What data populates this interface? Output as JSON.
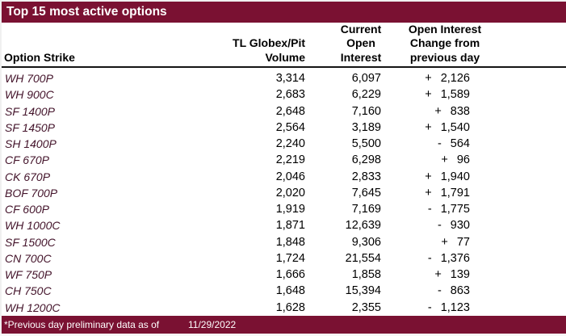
{
  "title": "Top 15 most active options",
  "colors": {
    "accent_maroon": "#7a1132",
    "strike_text": "#43132a",
    "header_rule": "#151515",
    "title_text": "#ffffff"
  },
  "table": {
    "headers": {
      "col1": "Option Strike",
      "col2_line1": "TL Globex/Pit",
      "col2_line2": "Volume",
      "col3_line1": "Current",
      "col3_line2": "Open",
      "col3_line3": "Interest",
      "col4_line1": "Open Interest",
      "col4_line2": "Change from",
      "col4_line3": "previous day"
    },
    "rows": [
      {
        "strike": "WH 700P",
        "volume": "3,314",
        "open_interest": "6,097",
        "change_sign": "+",
        "change_value": "2,126"
      },
      {
        "strike": "WH 900C",
        "volume": "2,683",
        "open_interest": "6,229",
        "change_sign": "+",
        "change_value": "1,589"
      },
      {
        "strike": "SF 1400P",
        "volume": "2,648",
        "open_interest": "7,160",
        "change_sign": "+",
        "change_value": "838"
      },
      {
        "strike": "SF 1450P",
        "volume": "2,564",
        "open_interest": "3,189",
        "change_sign": "+",
        "change_value": "1,540"
      },
      {
        "strike": "SH 1400P",
        "volume": "2,240",
        "open_interest": "5,500",
        "change_sign": "-",
        "change_value": "564"
      },
      {
        "strike": "CF 670P",
        "volume": "2,219",
        "open_interest": "6,298",
        "change_sign": "+",
        "change_value": "96"
      },
      {
        "strike": "CK 670P",
        "volume": "2,046",
        "open_interest": "2,833",
        "change_sign": "+",
        "change_value": "1,940"
      },
      {
        "strike": "BOF 700P",
        "volume": "2,020",
        "open_interest": "7,645",
        "change_sign": "+",
        "change_value": "1,791"
      },
      {
        "strike": "CF 600P",
        "volume": "1,919",
        "open_interest": "7,169",
        "change_sign": "-",
        "change_value": "1,775"
      },
      {
        "strike": "WH 1000C",
        "volume": "1,871",
        "open_interest": "12,639",
        "change_sign": "-",
        "change_value": "930"
      },
      {
        "strike": "SF 1500C",
        "volume": "1,848",
        "open_interest": "9,306",
        "change_sign": "+",
        "change_value": "77"
      },
      {
        "strike": "CN 700C",
        "volume": "1,724",
        "open_interest": "21,554",
        "change_sign": "-",
        "change_value": "1,376"
      },
      {
        "strike": "WF 750P",
        "volume": "1,666",
        "open_interest": "1,858",
        "change_sign": "+",
        "change_value": "139"
      },
      {
        "strike": "CH 750C",
        "volume": "1,648",
        "open_interest": "15,394",
        "change_sign": "-",
        "change_value": "863"
      },
      {
        "strike": "WH 1200C",
        "volume": "1,628",
        "open_interest": "2,355",
        "change_sign": "-",
        "change_value": "1,123"
      }
    ]
  },
  "footer": {
    "note": "*Previous day preliminary data as of",
    "date": "11/29/2022"
  },
  "chart_data": {
    "type": "table",
    "title": "Top 15 most active options",
    "columns": [
      "Option Strike",
      "TL Globex/Pit Volume",
      "Current Open Interest",
      "Open Interest Change from previous day"
    ],
    "rows": [
      [
        "WH 700P",
        3314,
        6097,
        2126
      ],
      [
        "WH 900C",
        2683,
        6229,
        1589
      ],
      [
        "SF 1400P",
        2648,
        7160,
        838
      ],
      [
        "SF 1450P",
        2564,
        3189,
        1540
      ],
      [
        "SH 1400P",
        2240,
        5500,
        -564
      ],
      [
        "CF 670P",
        2219,
        6298,
        96
      ],
      [
        "CK 670P",
        2046,
        2833,
        1940
      ],
      [
        "BOF 700P",
        2020,
        7645,
        1791
      ],
      [
        "CF 600P",
        1919,
        7169,
        -1775
      ],
      [
        "WH 1000C",
        1871,
        12639,
        -930
      ],
      [
        "SF 1500C",
        1848,
        9306,
        77
      ],
      [
        "CN 700C",
        1724,
        21554,
        -1376
      ],
      [
        "WF 750P",
        1666,
        1858,
        139
      ],
      [
        "CH 750C",
        1648,
        15394,
        -863
      ],
      [
        "WH 1200C",
        1628,
        2355,
        -1123
      ]
    ],
    "footnote": "*Previous day preliminary data as of 11/29/2022"
  }
}
